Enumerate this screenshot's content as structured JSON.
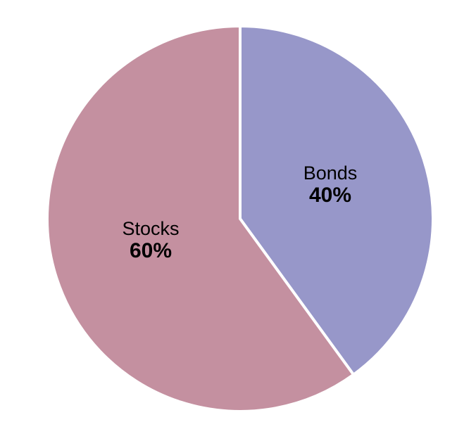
{
  "chart_data": {
    "type": "pie",
    "title": "",
    "slices": [
      {
        "label": "Bonds",
        "value": 40,
        "value_label": "40%",
        "color": "#9797c9"
      },
      {
        "label": "Stocks",
        "value": 60,
        "value_label": "60%",
        "color": "#c490a0"
      }
    ],
    "start": "12 o'clock",
    "direction": "clockwise",
    "separator_color": "#ffffff",
    "legend": "none"
  }
}
